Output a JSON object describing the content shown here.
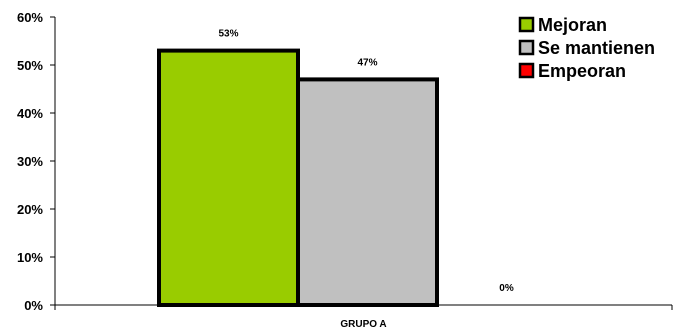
{
  "chart_data": {
    "type": "bar",
    "categories": [
      "GRUPO A"
    ],
    "series": [
      {
        "name": "Mejoran",
        "values": [
          53
        ],
        "label": "53%",
        "color": "#99cc00"
      },
      {
        "name": "Se mantienen",
        "values": [
          47
        ],
        "label": "47%",
        "color": "#c0c0c0"
      },
      {
        "name": "Empeoran",
        "values": [
          0
        ],
        "label": "0%",
        "color": "#ff0000"
      }
    ],
    "ylim": [
      0,
      60
    ],
    "yticks": [
      "0%",
      "10%",
      "20%",
      "30%",
      "40%",
      "50%",
      "60%"
    ],
    "legend_position": "top-right",
    "grid": false
  }
}
